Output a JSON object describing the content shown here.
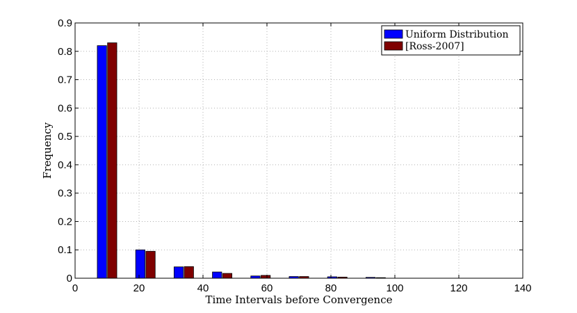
{
  "chart_data": {
    "type": "bar",
    "xlabel": "Time Intervals before Convergence",
    "ylabel": "Frequency",
    "xlim": [
      0,
      140
    ],
    "ylim": [
      0,
      0.9
    ],
    "x_ticks": [
      "0",
      "20",
      "40",
      "60",
      "80",
      "100",
      "120",
      "140"
    ],
    "y_ticks": [
      "0",
      "0.1",
      "0.2",
      "0.3",
      "0.4",
      "0.5",
      "0.6",
      "0.7",
      "0.8",
      "0.9"
    ],
    "grid": true,
    "legend_position": "top-right",
    "categories": [
      10,
      22,
      34,
      46,
      58,
      70,
      82,
      94
    ],
    "series": [
      {
        "name": "Uniform Distribution",
        "color": "#0000ff",
        "values": [
          0.82,
          0.1,
          0.04,
          0.022,
          0.008,
          0.006,
          0.005,
          0.003
        ]
      },
      {
        "name": "[Ross-2007]",
        "color": "#7f0000",
        "values": [
          0.83,
          0.095,
          0.041,
          0.017,
          0.01,
          0.006,
          0.004,
          0.002
        ]
      }
    ]
  }
}
